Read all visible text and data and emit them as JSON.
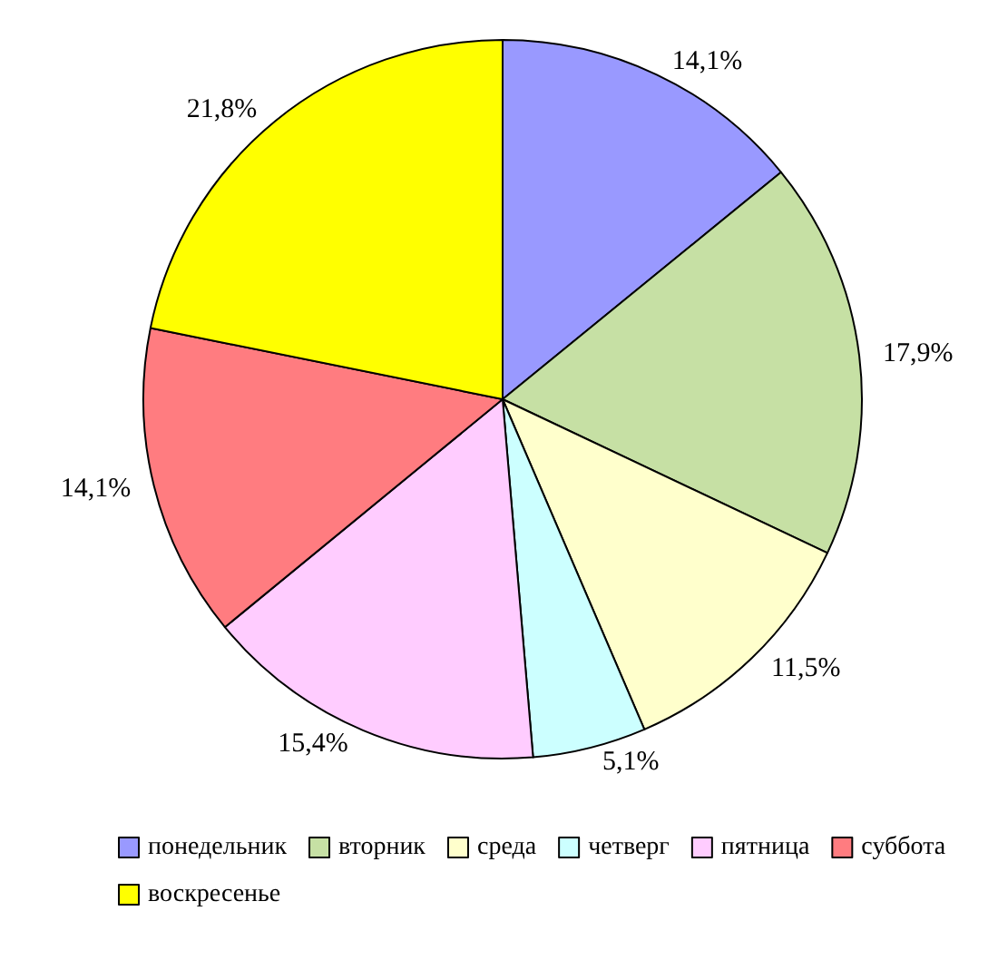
{
  "chart_data": {
    "type": "pie",
    "categories": [
      "понедельник",
      "вторник",
      "среда",
      "четверг",
      "пятница",
      "суббота",
      "воскресенье"
    ],
    "values": [
      14.1,
      17.9,
      11.5,
      5.1,
      15.4,
      14.1,
      21.8
    ],
    "value_labels": [
      "14,1%",
      "17,9%",
      "11,5%",
      "5,1%",
      "15,4%",
      "14,1%",
      "21,8%"
    ],
    "colors": [
      "#9999ff",
      "#c6e0a4",
      "#ffffcc",
      "#ccffff",
      "#ffccff",
      "#ff7c80",
      "#ffff00"
    ],
    "legend": "bottom"
  }
}
